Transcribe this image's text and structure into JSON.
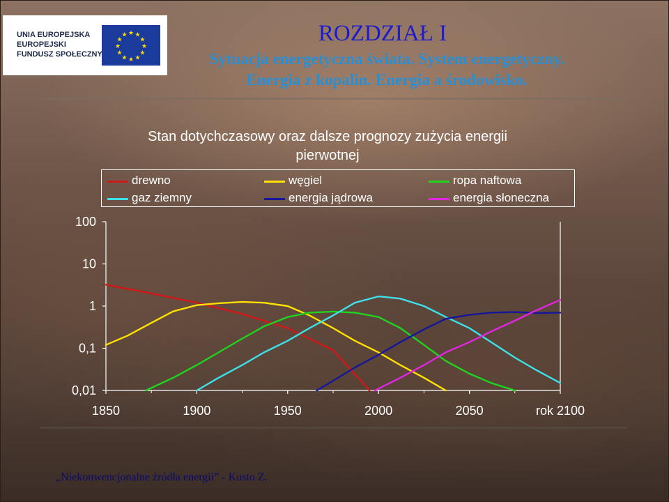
{
  "header": {
    "logo_lines": [
      "UNIA EUROPEJSKA",
      "EUROPEJSKI",
      "FUNDUSZ SPOŁECZNY"
    ],
    "chapter": "ROZDZIAŁ I",
    "subtitle_line1": "Sytuacja energetyczna świata. System energetyczny.",
    "subtitle_line2": "Energia z kopalin. Energia a środowisko."
  },
  "footer": {
    "text": "„Niekonwencjonalne źródła energii” - Kusto Z."
  },
  "colors": {
    "title": "#1c1ccc",
    "subtitle": "#2a8fd2"
  },
  "chart_data": {
    "type": "line",
    "title_line1": "Stan dotychczasowy oraz dalsze prognozy zużycia energii",
    "title_line2": "pierwotnej",
    "x_tick_labels": [
      "1850",
      "1900",
      "1950",
      "2000",
      "2050",
      "rok 2100"
    ],
    "x_ticks": [
      1850,
      1900,
      1950,
      2000,
      2050,
      2100
    ],
    "y_tick_labels": [
      "100",
      "10",
      "1",
      "0,1",
      "0,01"
    ],
    "y_ticks": [
      100,
      10,
      1,
      0.1,
      0.01
    ],
    "xlim": [
      1850,
      2100
    ],
    "ylim": [
      0.01,
      100
    ],
    "y_scale": "log",
    "grid": false,
    "legend_position": "top",
    "series": [
      {
        "name": "drewno",
        "color": "#d01818",
        "points": [
          [
            1850,
            3.2
          ],
          [
            1875,
            2.0
          ],
          [
            1900,
            1.2
          ],
          [
            1925,
            0.65
          ],
          [
            1950,
            0.3
          ],
          [
            1975,
            0.09
          ],
          [
            1995,
            0.01
          ]
        ]
      },
      {
        "name": "węgiel",
        "color": "#ffe000",
        "points": [
          [
            1850,
            0.12
          ],
          [
            1862,
            0.2
          ],
          [
            1875,
            0.4
          ],
          [
            1887,
            0.75
          ],
          [
            1900,
            1.05
          ],
          [
            1912,
            1.17
          ],
          [
            1925,
            1.25
          ],
          [
            1937,
            1.2
          ],
          [
            1950,
            1.0
          ],
          [
            1962,
            0.6
          ],
          [
            1975,
            0.3
          ],
          [
            1987,
            0.15
          ],
          [
            2000,
            0.08
          ],
          [
            2012,
            0.04
          ],
          [
            2025,
            0.02
          ],
          [
            2037,
            0.01
          ]
        ]
      },
      {
        "name": "ropa naftowa",
        "color": "#1fd31f",
        "points": [
          [
            1872,
            0.01
          ],
          [
            1887,
            0.02
          ],
          [
            1900,
            0.04
          ],
          [
            1912,
            0.08
          ],
          [
            1925,
            0.17
          ],
          [
            1937,
            0.33
          ],
          [
            1950,
            0.55
          ],
          [
            1962,
            0.7
          ],
          [
            1975,
            0.74
          ],
          [
            1987,
            0.7
          ],
          [
            2000,
            0.55
          ],
          [
            2012,
            0.3
          ],
          [
            2025,
            0.12
          ],
          [
            2037,
            0.05
          ],
          [
            2050,
            0.025
          ],
          [
            2062,
            0.015
          ],
          [
            2075,
            0.01
          ]
        ]
      },
      {
        "name": "gaz ziemny",
        "color": "#3ee0ea",
        "points": [
          [
            1900,
            0.01
          ],
          [
            1912,
            0.02
          ],
          [
            1925,
            0.04
          ],
          [
            1937,
            0.08
          ],
          [
            1950,
            0.15
          ],
          [
            1962,
            0.3
          ],
          [
            1975,
            0.6
          ],
          [
            1987,
            1.2
          ],
          [
            2000,
            1.7
          ],
          [
            2012,
            1.5
          ],
          [
            2025,
            1.0
          ],
          [
            2037,
            0.55
          ],
          [
            2050,
            0.3
          ],
          [
            2062,
            0.14
          ],
          [
            2075,
            0.06
          ],
          [
            2087,
            0.03
          ],
          [
            2100,
            0.015
          ]
        ]
      },
      {
        "name": "energia jądrowa",
        "color": "#16169a",
        "points": [
          [
            1966,
            0.01
          ],
          [
            1975,
            0.017
          ],
          [
            1987,
            0.035
          ],
          [
            2000,
            0.07
          ],
          [
            2012,
            0.14
          ],
          [
            2025,
            0.28
          ],
          [
            2037,
            0.5
          ],
          [
            2050,
            0.62
          ],
          [
            2062,
            0.7
          ],
          [
            2075,
            0.72
          ],
          [
            2087,
            0.68
          ],
          [
            2100,
            0.7
          ]
        ]
      },
      {
        "name": "energia słoneczna",
        "color": "#e026e0",
        "points": [
          [
            1998,
            0.01
          ],
          [
            2012,
            0.02
          ],
          [
            2025,
            0.04
          ],
          [
            2037,
            0.08
          ],
          [
            2050,
            0.14
          ],
          [
            2062,
            0.25
          ],
          [
            2075,
            0.45
          ],
          [
            2087,
            0.8
          ],
          [
            2100,
            1.4
          ]
        ]
      }
    ]
  }
}
